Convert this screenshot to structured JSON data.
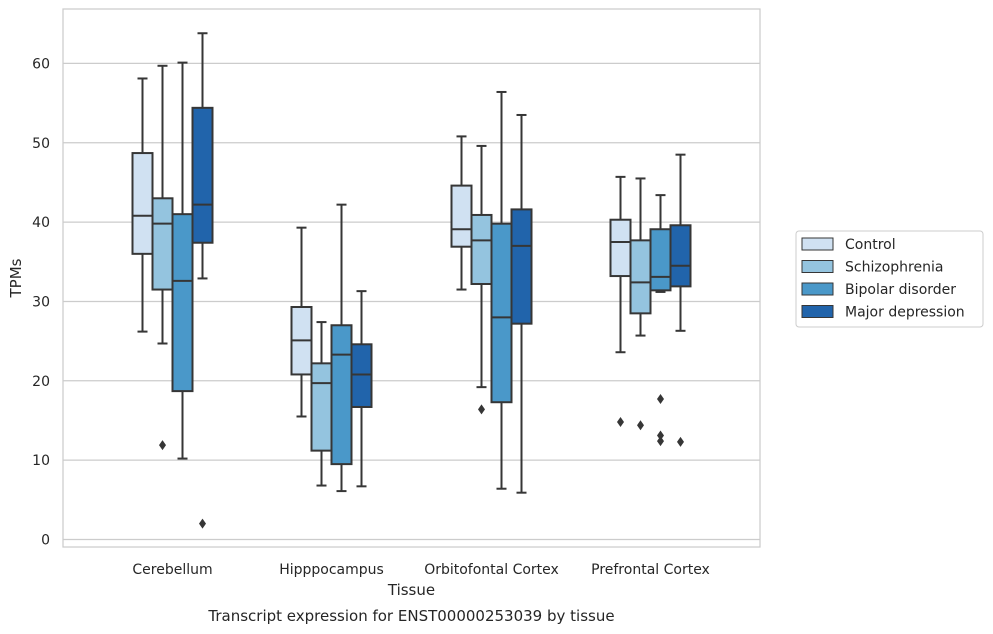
{
  "caption": "Transcript expression for ENST00000253039 by tissue",
  "chart_data": {
    "type": "box",
    "xlabel": "Tissue",
    "ylabel": "TPMs",
    "ylim": [
      -1,
      67
    ],
    "yticks": [
      0,
      10,
      20,
      30,
      40,
      50,
      60
    ],
    "grid": "horizontal",
    "legend_position": "right",
    "categories": [
      "Cerebellum",
      "Hipppocampus",
      "Orbitofontal Cortex",
      "Prefrontal Cortex"
    ],
    "series": [
      {
        "name": "Control",
        "color": "#d0e1f2",
        "boxes": [
          {
            "whislo": 26.2,
            "q1": 36.0,
            "med": 40.8,
            "q3": 48.7,
            "whishi": 58.1,
            "fliers": []
          },
          {
            "whislo": 15.5,
            "q1": 20.8,
            "med": 25.1,
            "q3": 29.3,
            "whishi": 39.3,
            "fliers": []
          },
          {
            "whislo": 31.5,
            "q1": 36.9,
            "med": 39.1,
            "q3": 44.6,
            "whishi": 50.8,
            "fliers": []
          },
          {
            "whislo": 23.6,
            "q1": 33.2,
            "med": 37.5,
            "q3": 40.3,
            "whishi": 45.7,
            "fliers": [
              14.8
            ]
          }
        ]
      },
      {
        "name": "Schizophrenia",
        "color": "#94c4df",
        "boxes": [
          {
            "whislo": 24.7,
            "q1": 31.5,
            "med": 39.8,
            "q3": 43.0,
            "whishi": 59.7,
            "fliers": [
              11.9
            ]
          },
          {
            "whislo": 6.8,
            "q1": 11.2,
            "med": 19.7,
            "q3": 22.2,
            "whishi": 27.4,
            "fliers": []
          },
          {
            "whislo": 19.2,
            "q1": 32.2,
            "med": 37.7,
            "q3": 40.9,
            "whishi": 49.6,
            "fliers": [
              16.4
            ]
          },
          {
            "whislo": 25.7,
            "q1": 28.5,
            "med": 32.4,
            "q3": 37.7,
            "whishi": 45.5,
            "fliers": [
              14.4
            ]
          }
        ]
      },
      {
        "name": "Bipolar disorder",
        "color": "#4a98c9",
        "boxes": [
          {
            "whislo": 10.2,
            "q1": 18.7,
            "med": 32.6,
            "q3": 41.0,
            "whishi": 60.1,
            "fliers": []
          },
          {
            "whislo": 6.1,
            "q1": 9.5,
            "med": 23.3,
            "q3": 27.0,
            "whishi": 42.2,
            "fliers": []
          },
          {
            "whislo": 6.4,
            "q1": 17.3,
            "med": 28.0,
            "q3": 39.8,
            "whishi": 56.4,
            "fliers": []
          },
          {
            "whislo": 31.2,
            "q1": 31.4,
            "med": 33.1,
            "q3": 39.1,
            "whishi": 43.4,
            "fliers": [
              17.7,
              13.1,
              12.4
            ]
          }
        ]
      },
      {
        "name": "Major depression",
        "color": "#2164ab",
        "boxes": [
          {
            "whislo": 32.9,
            "q1": 37.4,
            "med": 42.2,
            "q3": 54.4,
            "whishi": 63.8,
            "fliers": [
              2.0
            ]
          },
          {
            "whislo": 6.7,
            "q1": 16.7,
            "med": 20.8,
            "q3": 24.6,
            "whishi": 31.3,
            "fliers": []
          },
          {
            "whislo": 5.9,
            "q1": 27.2,
            "med": 37.0,
            "q3": 41.6,
            "whishi": 53.5,
            "fliers": []
          },
          {
            "whislo": 26.3,
            "q1": 31.9,
            "med": 34.5,
            "q3": 39.6,
            "whishi": 48.5,
            "fliers": [
              12.3
            ]
          }
        ]
      }
    ]
  }
}
